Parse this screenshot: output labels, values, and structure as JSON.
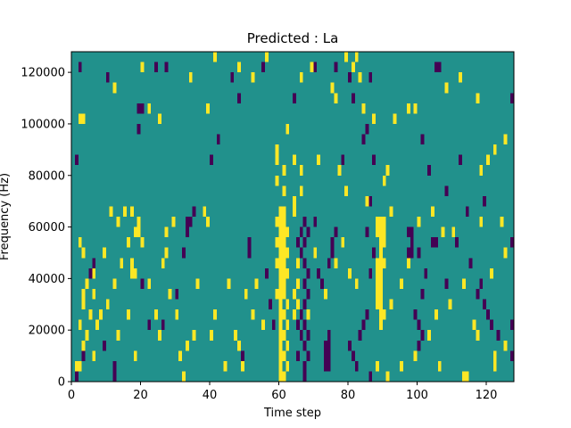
{
  "chart_data": {
    "type": "heatmap",
    "title": "Predicted : La",
    "xlabel": "Time step",
    "ylabel": "Frequency (Hz)",
    "xlim": [
      0,
      128
    ],
    "ylim": [
      0,
      128000
    ],
    "x_ticks": [
      "0",
      "20",
      "40",
      "60",
      "80",
      "100",
      "120"
    ],
    "x_tick_values": [
      0,
      20,
      40,
      60,
      80,
      100,
      120
    ],
    "y_ticks": [
      "0",
      "20000",
      "40000",
      "60000",
      "80000",
      "100000",
      "120000"
    ],
    "y_tick_values": [
      0,
      20000,
      40000,
      60000,
      80000,
      100000,
      120000
    ],
    "grid": false,
    "colors": {
      "low": "#440154",
      "mid": "#21918c",
      "high": "#fde725"
    },
    "background_level": 0,
    "levels": [
      -1,
      0,
      1
    ],
    "cell_width_steps": 1,
    "cell_height_hz": 4000,
    "cells": [
      [
        60,
        4000,
        1
      ],
      [
        60,
        8000,
        1
      ],
      [
        60,
        12000,
        1
      ],
      [
        60,
        16000,
        1
      ],
      [
        60,
        20000,
        1
      ],
      [
        60,
        24000,
        1
      ],
      [
        60,
        28000,
        1
      ],
      [
        60,
        32000,
        1
      ],
      [
        60,
        36000,
        1
      ],
      [
        60,
        40000,
        1
      ],
      [
        60,
        44000,
        1
      ],
      [
        60,
        48000,
        1
      ],
      [
        60,
        52000,
        1
      ],
      [
        60,
        56000,
        1
      ],
      [
        60,
        60000,
        1
      ],
      [
        60,
        64000,
        1
      ],
      [
        60,
        68000,
        1
      ],
      [
        61,
        4000,
        1
      ],
      [
        61,
        12000,
        1
      ],
      [
        61,
        20000,
        1
      ],
      [
        61,
        28000,
        1
      ],
      [
        61,
        36000,
        1
      ],
      [
        61,
        40000,
        1
      ],
      [
        61,
        44000,
        1
      ],
      [
        61,
        48000,
        1
      ],
      [
        61,
        52000,
        1
      ],
      [
        61,
        56000,
        1
      ],
      [
        61,
        60000,
        1
      ],
      [
        61,
        64000,
        1
      ],
      [
        61,
        68000,
        1
      ],
      [
        61,
        76000,
        1
      ],
      [
        61,
        84000,
        1
      ],
      [
        59,
        36000,
        1
      ],
      [
        59,
        48000,
        1
      ],
      [
        59,
        56000,
        1
      ],
      [
        59,
        64000,
        1
      ],
      [
        59,
        80000,
        1
      ],
      [
        59,
        88000,
        1
      ],
      [
        59,
        92000,
        1
      ],
      [
        62,
        8000,
        1
      ],
      [
        62,
        16000,
        1
      ],
      [
        62,
        24000,
        1
      ],
      [
        62,
        32000,
        1
      ],
      [
        62,
        44000,
        1
      ],
      [
        62,
        52000,
        1
      ],
      [
        62,
        60000,
        1
      ],
      [
        89,
        24000,
        1
      ],
      [
        89,
        28000,
        1
      ],
      [
        89,
        32000,
        1
      ],
      [
        89,
        36000,
        1
      ],
      [
        89,
        40000,
        1
      ],
      [
        89,
        44000,
        1
      ],
      [
        89,
        48000,
        1
      ],
      [
        89,
        52000,
        1
      ],
      [
        89,
        56000,
        1
      ],
      [
        89,
        60000,
        1
      ],
      [
        89,
        64000,
        1
      ],
      [
        88,
        32000,
        1
      ],
      [
        88,
        36000,
        1
      ],
      [
        88,
        40000,
        1
      ],
      [
        88,
        44000,
        1
      ],
      [
        88,
        48000,
        1
      ],
      [
        88,
        60000,
        1
      ],
      [
        88,
        64000,
        1
      ],
      [
        88,
        8000,
        1
      ],
      [
        90,
        28000,
        1
      ],
      [
        90,
        48000,
        1
      ],
      [
        90,
        56000,
        1
      ],
      [
        90,
        60000,
        1
      ],
      [
        90,
        64000,
        1
      ],
      [
        90,
        80000,
        1
      ],
      [
        64,
        28000,
        1
      ],
      [
        64,
        36000,
        1
      ],
      [
        64,
        68000,
        1
      ],
      [
        64,
        72000,
        1
      ],
      [
        64,
        88000,
        1
      ],
      [
        65,
        40000,
        1
      ],
      [
        65,
        48000,
        1
      ],
      [
        65,
        32000,
        1
      ],
      [
        66,
        84000,
        1
      ],
      [
        66,
        76000,
        1
      ],
      [
        3,
        32000,
        1
      ],
      [
        3,
        36000,
        1
      ],
      [
        4,
        20000,
        1
      ],
      [
        5,
        28000,
        1
      ],
      [
        2,
        24000,
        1
      ],
      [
        4,
        40000,
        1
      ],
      [
        3,
        52000,
        1
      ],
      [
        2,
        56000,
        1
      ],
      [
        1,
        8000,
        1
      ],
      [
        2,
        8000,
        1
      ],
      [
        3,
        16000,
        1
      ],
      [
        2,
        104000,
        1
      ],
      [
        3,
        104000,
        1
      ],
      [
        6,
        36000,
        1
      ],
      [
        6,
        44000,
        1
      ],
      [
        17,
        44000,
        1
      ],
      [
        18,
        44000,
        1
      ],
      [
        18,
        60000,
        1
      ],
      [
        19,
        60000,
        1
      ],
      [
        19,
        64000,
        1
      ],
      [
        17,
        48000,
        1
      ],
      [
        17,
        68000,
        1
      ],
      [
        20,
        56000,
        1
      ],
      [
        22,
        40000,
        1
      ],
      [
        24,
        28000,
        1
      ],
      [
        25,
        20000,
        1
      ],
      [
        26,
        48000,
        1
      ],
      [
        27,
        52000,
        1
      ],
      [
        27,
        60000,
        1
      ],
      [
        28,
        36000,
        1
      ],
      [
        29,
        64000,
        1
      ],
      [
        30,
        28000,
        1
      ],
      [
        31,
        12000,
        1
      ],
      [
        32,
        4000,
        1
      ],
      [
        33,
        16000,
        1
      ],
      [
        35,
        20000,
        1
      ],
      [
        36,
        40000,
        1
      ],
      [
        38,
        68000,
        1
      ],
      [
        39,
        64000,
        1
      ],
      [
        40,
        20000,
        1
      ],
      [
        41,
        28000,
        1
      ],
      [
        44,
        8000,
        1
      ],
      [
        45,
        40000,
        1
      ],
      [
        47,
        20000,
        1
      ],
      [
        48,
        16000,
        1
      ],
      [
        49,
        8000,
        1
      ],
      [
        50,
        36000,
        1
      ],
      [
        52,
        28000,
        1
      ],
      [
        53,
        40000,
        1
      ],
      [
        55,
        24000,
        1
      ],
      [
        11,
        68000,
        1
      ],
      [
        13,
        64000,
        1
      ],
      [
        15,
        68000,
        1
      ],
      [
        16,
        56000,
        1
      ],
      [
        12,
        40000,
        1
      ],
      [
        14,
        48000,
        1
      ],
      [
        9,
        52000,
        1
      ],
      [
        10,
        32000,
        1
      ],
      [
        8,
        28000,
        1
      ],
      [
        7,
        24000,
        1
      ],
      [
        6,
        12000,
        1
      ],
      [
        13,
        20000,
        1
      ],
      [
        16,
        28000,
        1
      ],
      [
        18,
        12000,
        1
      ],
      [
        12,
        116000,
        1
      ],
      [
        20,
        124000,
        1
      ],
      [
        22,
        108000,
        1
      ],
      [
        25,
        104000,
        1
      ],
      [
        34,
        120000,
        1
      ],
      [
        39,
        108000,
        1
      ],
      [
        41,
        128000,
        1
      ],
      [
        48,
        124000,
        1
      ],
      [
        52,
        120000,
        1
      ],
      [
        56,
        128000,
        1
      ],
      [
        62,
        100000,
        1
      ],
      [
        66,
        120000,
        1
      ],
      [
        69,
        124000,
        1
      ],
      [
        75,
        116000,
        1
      ],
      [
        76,
        112000,
        1
      ],
      [
        79,
        128000,
        1
      ],
      [
        81,
        124000,
        1
      ],
      [
        82,
        128000,
        1
      ],
      [
        83,
        120000,
        1
      ],
      [
        84,
        108000,
        1
      ],
      [
        87,
        104000,
        1
      ],
      [
        91,
        84000,
        1
      ],
      [
        93,
        104000,
        1
      ],
      [
        97,
        108000,
        1
      ],
      [
        99,
        108000,
        1
      ],
      [
        108,
        116000,
        1
      ],
      [
        112,
        120000,
        1
      ],
      [
        117,
        112000,
        1
      ],
      [
        120,
        88000,
        1
      ],
      [
        122,
        92000,
        1
      ],
      [
        118,
        84000,
        1
      ],
      [
        125,
        96000,
        1
      ],
      [
        117,
        20000,
        1
      ],
      [
        122,
        8000,
        1
      ],
      [
        122,
        12000,
        1
      ],
      [
        113,
        4000,
        1
      ],
      [
        114,
        4000,
        1
      ],
      [
        125,
        16000,
        1
      ],
      [
        121,
        44000,
        1
      ],
      [
        125,
        52000,
        1
      ],
      [
        124,
        64000,
        1
      ],
      [
        118,
        64000,
        1
      ],
      [
        110,
        60000,
        1
      ],
      [
        107,
        60000,
        1
      ],
      [
        104,
        68000,
        1
      ],
      [
        100,
        64000,
        1
      ],
      [
        97,
        48000,
        1
      ],
      [
        95,
        40000,
        1
      ],
      [
        92,
        32000,
        1
      ],
      [
        80,
        44000,
        1
      ],
      [
        82,
        40000,
        1
      ],
      [
        78,
        56000,
        1
      ],
      [
        76,
        48000,
        1
      ],
      [
        73,
        36000,
        1
      ],
      [
        70,
        52000,
        1
      ],
      [
        68,
        28000,
        1
      ],
      [
        92,
        68000,
        1
      ],
      [
        85,
        72000,
        1
      ],
      [
        79,
        76000,
        1
      ],
      [
        77,
        84000,
        1
      ],
      [
        71,
        88000,
        1
      ],
      [
        95,
        8000,
        1
      ],
      [
        91,
        4000,
        1
      ],
      [
        103,
        20000,
        1
      ],
      [
        105,
        28000,
        1
      ],
      [
        109,
        32000,
        1
      ],
      [
        113,
        40000,
        1
      ],
      [
        116,
        24000,
        1
      ],
      [
        99,
        12000,
        1
      ],
      [
        106,
        8000,
        1
      ],
      [
        97,
        60000,
        -1
      ],
      [
        98,
        60000,
        -1
      ],
      [
        97,
        52000,
        -1
      ],
      [
        98,
        52000,
        -1
      ],
      [
        98,
        56000,
        -1
      ],
      [
        104,
        56000,
        -1
      ],
      [
        105,
        56000,
        -1
      ],
      [
        67,
        4000,
        -1
      ],
      [
        67,
        8000,
        -1
      ],
      [
        67,
        16000,
        -1
      ],
      [
        67,
        24000,
        -1
      ],
      [
        67,
        32000,
        -1
      ],
      [
        67,
        40000,
        -1
      ],
      [
        67,
        48000,
        -1
      ],
      [
        67,
        56000,
        -1
      ],
      [
        67,
        64000,
        -1
      ],
      [
        68,
        12000,
        -1
      ],
      [
        68,
        20000,
        -1
      ],
      [
        68,
        36000,
        -1
      ],
      [
        68,
        44000,
        -1
      ],
      [
        68,
        60000,
        -1
      ],
      [
        66,
        20000,
        -1
      ],
      [
        66,
        28000,
        -1
      ],
      [
        66,
        52000,
        -1
      ],
      [
        66,
        60000,
        -1
      ],
      [
        65,
        56000,
        -1
      ],
      [
        65,
        12000,
        -1
      ],
      [
        65,
        24000,
        -1
      ],
      [
        73,
        8000,
        -1
      ],
      [
        73,
        12000,
        -1
      ],
      [
        74,
        8000,
        -1
      ],
      [
        74,
        12000,
        -1
      ],
      [
        73,
        16000,
        -1
      ],
      [
        74,
        16000,
        -1
      ],
      [
        74,
        20000,
        -1
      ],
      [
        74,
        48000,
        -1
      ],
      [
        75,
        52000,
        -1
      ],
      [
        75,
        56000,
        -1
      ],
      [
        76,
        60000,
        -1
      ],
      [
        72,
        40000,
        -1
      ],
      [
        71,
        44000,
        -1
      ],
      [
        70,
        64000,
        -1
      ],
      [
        82,
        8000,
        -1
      ],
      [
        83,
        20000,
        -1
      ],
      [
        84,
        24000,
        -1
      ],
      [
        85,
        28000,
        -1
      ],
      [
        86,
        4000,
        -1
      ],
      [
        81,
        12000,
        -1
      ],
      [
        80,
        16000,
        -1
      ],
      [
        86,
        44000,
        -1
      ],
      [
        87,
        52000,
        -1
      ],
      [
        85,
        60000,
        -1
      ],
      [
        86,
        72000,
        -1
      ],
      [
        87,
        88000,
        -1
      ],
      [
        84,
        96000,
        -1
      ],
      [
        81,
        112000,
        -1
      ],
      [
        100,
        16000,
        -1
      ],
      [
        100,
        24000,
        -1
      ],
      [
        99,
        28000,
        -1
      ],
      [
        101,
        20000,
        -1
      ],
      [
        101,
        36000,
        -1
      ],
      [
        102,
        44000,
        -1
      ],
      [
        100,
        52000,
        -1
      ],
      [
        117,
        36000,
        -1
      ],
      [
        118,
        40000,
        -1
      ],
      [
        119,
        32000,
        -1
      ],
      [
        120,
        28000,
        -1
      ],
      [
        127,
        12000,
        -1
      ],
      [
        127,
        56000,
        -1
      ],
      [
        127,
        112000,
        -1
      ],
      [
        1,
        4000,
        -1
      ],
      [
        3,
        12000,
        -1
      ],
      [
        12,
        4000,
        -1
      ],
      [
        12,
        8000,
        -1
      ],
      [
        9,
        16000,
        -1
      ],
      [
        5,
        44000,
        -1
      ],
      [
        6,
        48000,
        -1
      ],
      [
        2,
        124000,
        -1
      ],
      [
        10,
        120000,
        -1
      ],
      [
        19,
        108000,
        -1
      ],
      [
        20,
        108000,
        -1
      ],
      [
        19,
        100000,
        -1
      ],
      [
        24,
        124000,
        -1
      ],
      [
        27,
        124000,
        -1
      ],
      [
        1,
        88000,
        -1
      ],
      [
        20,
        40000,
        -1
      ],
      [
        22,
        24000,
        -1
      ],
      [
        26,
        24000,
        -1
      ],
      [
        30,
        36000,
        -1
      ],
      [
        32,
        52000,
        -1
      ],
      [
        33,
        60000,
        -1
      ],
      [
        33,
        64000,
        -1
      ],
      [
        34,
        64000,
        -1
      ],
      [
        35,
        68000,
        -1
      ],
      [
        40,
        88000,
        -1
      ],
      [
        42,
        96000,
        -1
      ],
      [
        46,
        120000,
        -1
      ],
      [
        48,
        112000,
        -1
      ],
      [
        49,
        12000,
        -1
      ],
      [
        51,
        56000,
        -1
      ],
      [
        51,
        52000,
        -1
      ],
      [
        56,
        44000,
        -1
      ],
      [
        57,
        32000,
        -1
      ],
      [
        58,
        24000,
        -1
      ],
      [
        55,
        124000,
        -1
      ],
      [
        64,
        112000,
        -1
      ],
      [
        70,
        124000,
        -1
      ],
      [
        76,
        124000,
        -1
      ],
      [
        78,
        88000,
        -1
      ],
      [
        80,
        120000,
        -1
      ],
      [
        86,
        120000,
        -1
      ],
      [
        85,
        100000,
        -1
      ],
      [
        105,
        124000,
        -1
      ],
      [
        106,
        124000,
        -1
      ],
      [
        101,
        96000,
        -1
      ],
      [
        103,
        84000,
        -1
      ],
      [
        108,
        76000,
        -1
      ],
      [
        112,
        88000,
        -1
      ],
      [
        114,
        68000,
        -1
      ],
      [
        108,
        40000,
        -1
      ],
      [
        111,
        56000,
        -1
      ],
      [
        115,
        48000,
        -1
      ],
      [
        123,
        20000,
        -1
      ],
      [
        121,
        24000,
        -1
      ],
      [
        119,
        72000,
        -1
      ],
      [
        127,
        24000,
        -1
      ]
    ]
  }
}
